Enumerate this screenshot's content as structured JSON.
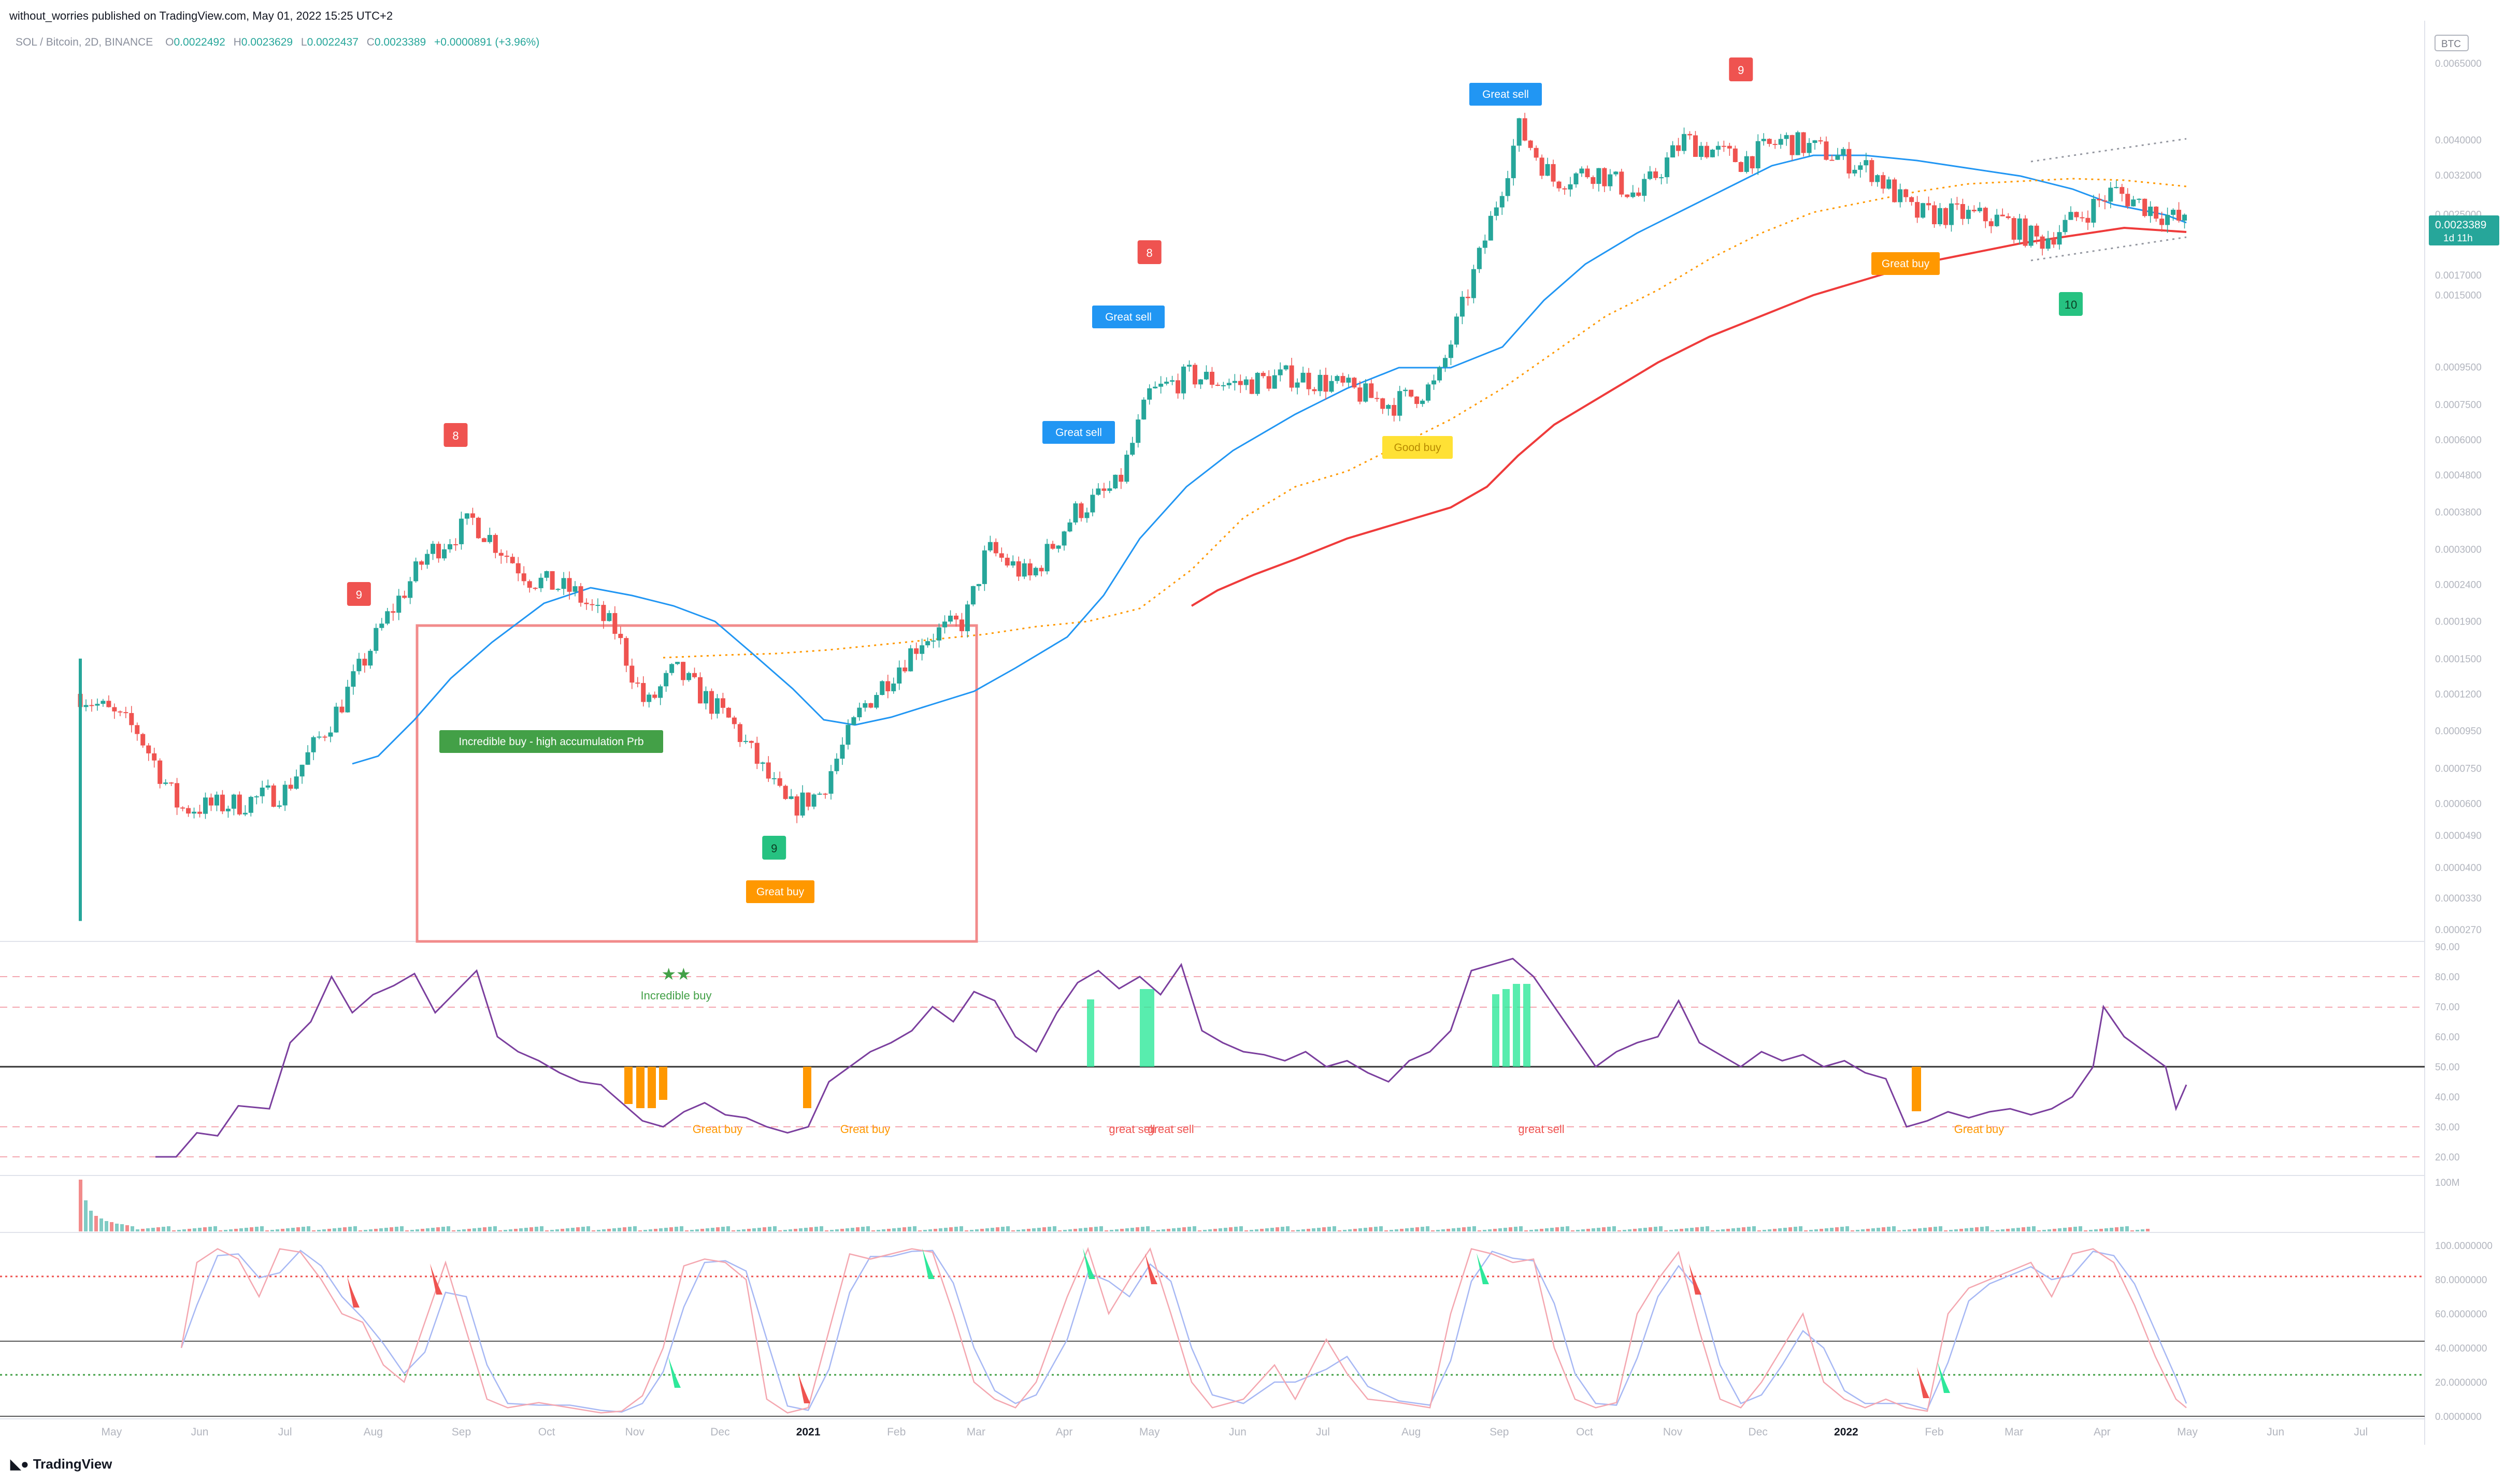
{
  "header": {
    "published": "without_worries published on TradingView.com, May 01, 2022 15:25 UTC+2"
  },
  "symbol": {
    "pair": "SOL / Bitcoin, 2D, BINANCE",
    "open": "0.0022492",
    "high": "0.0023629",
    "low": "0.0022437",
    "close": "0.0023389",
    "change": "+0.0000891 (+3.96%)",
    "o_label": "O",
    "h_label": "H",
    "l_label": "L",
    "c_label": "C"
  },
  "price_tag": {
    "value": "0.0023389",
    "countdown": "1d 11h",
    "currency": "BTC"
  },
  "footer": {
    "logo": "TradingView"
  },
  "colors": {
    "up": "#26a69a",
    "down": "#ef5350",
    "ema_blue": "#2196f3",
    "ema_red": "#ef3b3b",
    "ema_orange": "#ff9800",
    "rsi": "#7b3f9e",
    "stoch_k": "#f4a7b0",
    "stoch_d": "#a7b8f4"
  },
  "chart_data": [
    {
      "type": "candlestick",
      "title": "",
      "x_ticks": [
        "May",
        "Jun",
        "Jul",
        "Aug",
        "Sep",
        "Oct",
        "Nov",
        "Dec",
        "2021",
        "Feb",
        "Mar",
        "Apr",
        "May",
        "Jun",
        "Jul",
        "Aug",
        "Sep",
        "Oct",
        "Nov",
        "Dec",
        "2022",
        "Feb",
        "Mar",
        "Apr",
        "May",
        "Jun",
        "Jul"
      ],
      "y_scale": "log",
      "y_ticks": [
        "0.0065000",
        "0.0040000",
        "0.0032000",
        "0.0025000",
        "0.0017000",
        "0.0015000",
        "0.0009500",
        "0.0007500",
        "0.0006000",
        "0.0004800",
        "0.0003800",
        "0.0003000",
        "0.0002400",
        "0.0001900",
        "0.0001500",
        "0.0001200",
        "0.0000950",
        "0.0000750",
        "0.0000600",
        "0.0000490",
        "0.0000400",
        "0.0000330",
        "0.0000270"
      ],
      "ylim": [
        2.7e-05,
        0.0065
      ],
      "close_path": [
        {
          "x": "2020-04-20",
          "y": 0.00012
        },
        {
          "x": "2020-05-10",
          "y": 9.5e-05
        },
        {
          "x": "2020-05-25",
          "y": 5.8e-05
        },
        {
          "x": "2020-06-15",
          "y": 6e-05
        },
        {
          "x": "2020-07-01",
          "y": 6.5e-05
        },
        {
          "x": "2020-07-20",
          "y": 0.00011
        },
        {
          "x": "2020-08-05",
          "y": 0.00019
        },
        {
          "x": "2020-08-20",
          "y": 0.00029
        },
        {
          "x": "2020-09-05",
          "y": 0.00036
        },
        {
          "x": "2020-09-25",
          "y": 0.00025
        },
        {
          "x": "2020-10-10",
          "y": 0.00023
        },
        {
          "x": "2020-10-25",
          "y": 0.00018
        },
        {
          "x": "2020-11-05",
          "y": 0.00011
        },
        {
          "x": "2020-11-15",
          "y": 0.00014
        },
        {
          "x": "2020-12-05",
          "y": 0.0001
        },
        {
          "x": "2020-12-25",
          "y": 5.8e-05
        },
        {
          "x": "2021-01-05",
          "y": 6.4e-05
        },
        {
          "x": "2021-01-20",
          "y": 0.00011
        },
        {
          "x": "2021-02-10",
          "y": 0.00017
        },
        {
          "x": "2021-02-25",
          "y": 0.00019
        },
        {
          "x": "2021-03-05",
          "y": 0.0003
        },
        {
          "x": "2021-03-20",
          "y": 0.00025
        },
        {
          "x": "2021-04-05",
          "y": 0.00038
        },
        {
          "x": "2021-04-20",
          "y": 0.00045
        },
        {
          "x": "2021-05-01",
          "y": 0.0008
        },
        {
          "x": "2021-05-15",
          "y": 0.0009
        },
        {
          "x": "2021-06-01",
          "y": 0.00085
        },
        {
          "x": "2021-06-20",
          "y": 0.0009
        },
        {
          "x": "2021-07-05",
          "y": 0.00085
        },
        {
          "x": "2021-07-25",
          "y": 0.00075
        },
        {
          "x": "2021-08-10",
          "y": 0.00085
        },
        {
          "x": "2021-08-25",
          "y": 0.0019
        },
        {
          "x": "2021-09-08",
          "y": 0.0043
        },
        {
          "x": "2021-09-20",
          "y": 0.0031
        },
        {
          "x": "2021-10-05",
          "y": 0.0033
        },
        {
          "x": "2021-10-20",
          "y": 0.0028
        },
        {
          "x": "2021-11-05",
          "y": 0.004
        },
        {
          "x": "2021-11-25",
          "y": 0.0035
        },
        {
          "x": "2021-12-10",
          "y": 0.004
        },
        {
          "x": "2021-12-25",
          "y": 0.0037
        },
        {
          "x": "2022-01-10",
          "y": 0.0033
        },
        {
          "x": "2022-01-25",
          "y": 0.0025
        },
        {
          "x": "2022-02-10",
          "y": 0.0025
        },
        {
          "x": "2022-02-25",
          "y": 0.0024
        },
        {
          "x": "2022-03-10",
          "y": 0.0021
        },
        {
          "x": "2022-03-25",
          "y": 0.0025
        },
        {
          "x": "2022-04-05",
          "y": 0.0029
        },
        {
          "x": "2022-04-20",
          "y": 0.00255
        },
        {
          "x": "2022-05-01",
          "y": 0.002339
        }
      ],
      "annotations": [
        {
          "text": "9",
          "x": "2020-07-27",
          "color": "red"
        },
        {
          "text": "8",
          "x": "2020-08-30",
          "color": "red"
        },
        {
          "text": "9",
          "x": "2020-12-20",
          "color": "green"
        },
        {
          "text": "8",
          "x": "2021-05-01",
          "color": "red"
        },
        {
          "text": "9",
          "x": "2021-11-25",
          "color": "red"
        },
        {
          "text": "10",
          "x": "2022-03-21",
          "color": "green"
        },
        {
          "text": "Incredible buy - high accumulation Prb",
          "x": "2020-10-30"
        },
        {
          "text": "Great buy",
          "x": "2020-12-20"
        },
        {
          "text": "Great sell",
          "x": "2021-03-25"
        },
        {
          "text": "Great sell",
          "x": "2021-04-15"
        },
        {
          "text": "Great sell",
          "x": "2021-09-01"
        },
        {
          "text": "Good buy",
          "x": "2021-07-30"
        },
        {
          "text": "Great buy",
          "x": "2022-02-20"
        }
      ]
    },
    {
      "type": "line",
      "title": "",
      "y_ticks": [
        "90.00",
        "80.00",
        "70.00",
        "60.00",
        "50.00",
        "40.00",
        "30.00",
        "20.00"
      ],
      "ylim": [
        15,
        92
      ],
      "annotations": [
        "★★",
        "Incredible buy",
        "Great buy",
        "Great buy",
        "great sell",
        "great sell",
        "great sell",
        "Great buy"
      ]
    },
    {
      "type": "bar",
      "title": "",
      "y_ticks": [
        "100M"
      ]
    },
    {
      "type": "line",
      "title": "",
      "y_ticks": [
        "100.0000000",
        "80.0000000",
        "60.0000000",
        "40.0000000",
        "20.0000000",
        "0.0000000"
      ],
      "ylim": [
        -5,
        105
      ]
    }
  ]
}
